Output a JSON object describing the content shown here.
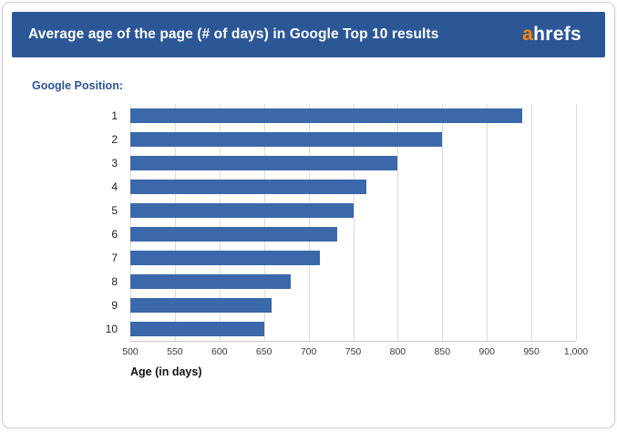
{
  "header": {
    "title": "Average age of the page (# of days) in Google Top 10 results",
    "logo_prefix": "a",
    "logo_rest": "hrefs",
    "bg_color": "#2b5797",
    "logo_accent_color": "#ff8a00"
  },
  "chart_data": {
    "type": "bar",
    "orientation": "horizontal",
    "group_axis_label": "Google Position:",
    "categories": [
      "1",
      "2",
      "3",
      "4",
      "5",
      "6",
      "7",
      "8",
      "9",
      "10"
    ],
    "values": [
      940,
      850,
      800,
      765,
      751,
      732,
      713,
      680,
      658,
      650
    ],
    "xlabel": "Age (in days)",
    "xlim": [
      500,
      1000
    ],
    "x_ticks": [
      500,
      550,
      600,
      650,
      700,
      750,
      800,
      850,
      900,
      950,
      1000
    ],
    "x_tick_labels": [
      "500",
      "550",
      "600",
      "650",
      "700",
      "750",
      "800",
      "850",
      "900",
      "950",
      "1,000"
    ],
    "bar_color": "#3a68aa",
    "gridline_color": "#dcdcdc",
    "grid": true,
    "legend": "none"
  }
}
